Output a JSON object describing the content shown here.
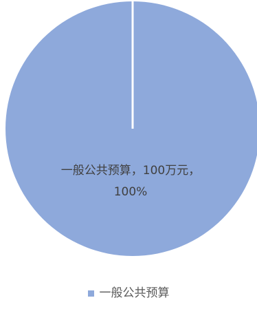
{
  "chart_data": {
    "type": "pie",
    "categories": [
      "一般公共预算"
    ],
    "values": [
      100
    ],
    "unit": "万元",
    "percentages": [
      "100%"
    ],
    "data_labels": [
      {
        "line1": "一般公共预算，100万元，",
        "line2": "100%"
      }
    ],
    "legend": {
      "position": "bottom",
      "entries": [
        "一般公共预算"
      ]
    },
    "colors": {
      "slices": [
        "#8EA9DB"
      ],
      "separator": "#FFFFFF"
    }
  }
}
